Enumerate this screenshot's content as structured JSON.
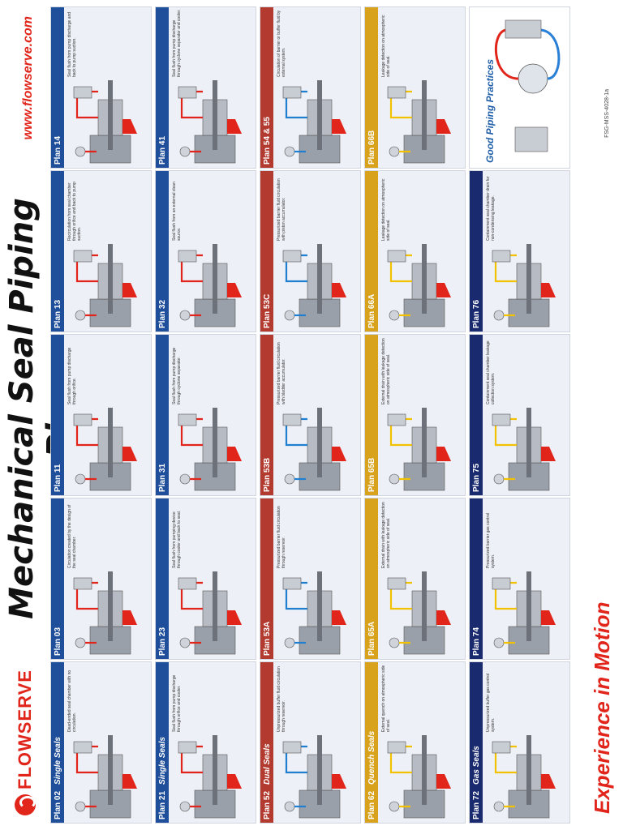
{
  "brand": {
    "name": "FLOWSERVE"
  },
  "title": "Mechanical Seal Piping Plans",
  "website": "www.flowserve.com",
  "tagline": "Experience in Motion",
  "doc_number": "FSG-MSS-4028-1a",
  "colors": {
    "blue": "#1f4e9a",
    "red": "#b23a2f",
    "gold": "#d9a21c",
    "navy": "#1a2a6e",
    "panel": "#eef0f7"
  },
  "rows": [
    {
      "color": "#1f4e9a",
      "cells": [
        {
          "plan": "Plan 02",
          "section": "Single Seals",
          "fluid": "#e1251b",
          "what": "Dead-ended seal chamber with no circulation."
        },
        {
          "plan": "Plan 03",
          "section": "",
          "fluid": "#e1251b",
          "what": "Circulation created by the design of the seal chamber."
        },
        {
          "plan": "Plan 11",
          "section": "",
          "fluid": "#e1251b",
          "what": "Seal flush from pump discharge through orifice."
        },
        {
          "plan": "Plan 13",
          "section": "",
          "fluid": "#e1251b",
          "what": "Recirculation from seal chamber through orifice and back to pump suction."
        },
        {
          "plan": "Plan 14",
          "section": "",
          "fluid": "#e1251b",
          "what": "Seal flush from pump discharge and back to pump suction."
        }
      ]
    },
    {
      "color": "#1f4e9a",
      "cells": [
        {
          "plan": "Plan 21",
          "section": "Single Seals",
          "fluid": "#e1251b",
          "what": "Seal flush from pump discharge through orifice and cooler."
        },
        {
          "plan": "Plan 23",
          "section": "",
          "fluid": "#e1251b",
          "what": "Seal flush from pumping device through cooler and back to seal."
        },
        {
          "plan": "Plan 31",
          "section": "",
          "fluid": "#e1251b",
          "what": "Seal flush from pump discharge through cyclone separator."
        },
        {
          "plan": "Plan 32",
          "section": "",
          "fluid": "#e1251b",
          "what": "Seal flush from an external clean source."
        },
        {
          "plan": "Plan 41",
          "section": "",
          "fluid": "#e1251b",
          "what": "Seal flush from pump discharge through cyclone separator and cooler."
        }
      ]
    },
    {
      "color": "#b23a2f",
      "cells": [
        {
          "plan": "Plan 52",
          "section": "Dual Seals",
          "fluid": "#1f7fd0",
          "what": "Unpressurized buffer fluid circulation through reservoir."
        },
        {
          "plan": "Plan 53A",
          "section": "",
          "fluid": "#1f7fd0",
          "what": "Pressurized barrier fluid circulation through reservoir."
        },
        {
          "plan": "Plan 53B",
          "section": "",
          "fluid": "#1f7fd0",
          "what": "Pressurized barrier fluid circulation with bladder accumulator."
        },
        {
          "plan": "Plan 53C",
          "section": "",
          "fluid": "#1f7fd0",
          "what": "Pressurized barrier fluid circulation with piston accumulator."
        },
        {
          "plan": "Plan 54 & 55",
          "section": "",
          "fluid": "#1f7fd0",
          "what": "Circulation of barrier or buffer fluid by external system."
        }
      ]
    },
    {
      "color": "#d9a21c",
      "cells": [
        {
          "plan": "Plan 62",
          "section": "Quench Seals",
          "fluid": "#f2c200",
          "what": "External quench on atmospheric side of seal."
        },
        {
          "plan": "Plan 65A",
          "section": "",
          "fluid": "#f2c200",
          "what": "External drain with leakage detection on atmospheric side of seal."
        },
        {
          "plan": "Plan 65B",
          "section": "",
          "fluid": "#f2c200",
          "what": "External drain with leakage detection on atmospheric side of seal."
        },
        {
          "plan": "Plan 66A",
          "section": "",
          "fluid": "#f2c200",
          "what": "Leakage detection on atmospheric side of seal."
        },
        {
          "plan": "Plan 66B",
          "section": "",
          "fluid": "#f2c200",
          "what": "Leakage detection on atmospheric side of seal."
        }
      ]
    },
    {
      "color": "#1a2a6e",
      "cells": [
        {
          "plan": "Plan 72",
          "section": "Gas Seals",
          "fluid": "#f2c200",
          "what": "Unpressurized buffer gas control system."
        },
        {
          "plan": "Plan 74",
          "section": "",
          "fluid": "#f2c200",
          "what": "Pressurized barrier gas control system."
        },
        {
          "plan": "Plan 75",
          "section": "",
          "fluid": "#f2c200",
          "what": "Containment seal chamber leakage collection system."
        },
        {
          "plan": "Plan 76",
          "section": "",
          "fluid": "#f2c200",
          "what": "Containment seal chamber drain for non-condensing leakage."
        },
        {
          "plan": "",
          "section": "Good Piping Practices",
          "fluid": "#e1251b",
          "what": ""
        }
      ]
    }
  ]
}
